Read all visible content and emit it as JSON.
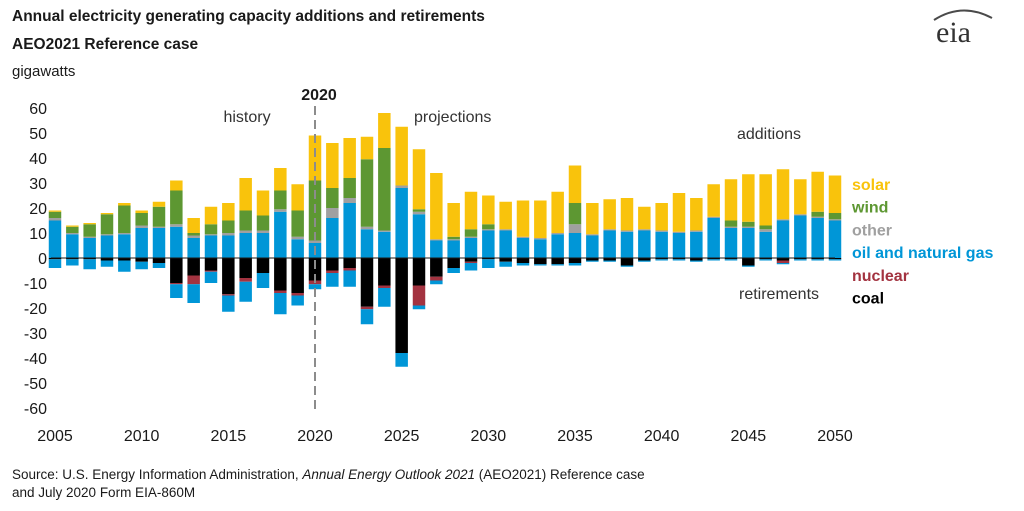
{
  "header": {
    "title": "Annual electricity generating capacity additions and retirements",
    "subtitle": "AEO2021 Reference case",
    "units": "gigawatts",
    "logo_text": "eia"
  },
  "annotations": {
    "year_marker": "2020",
    "history": "history",
    "projections": "projections",
    "additions": "additions",
    "retirements": "retirements"
  },
  "legend": [
    {
      "label": "solar",
      "color": "#f9c30c"
    },
    {
      "label": "wind",
      "color": "#5d9732"
    },
    {
      "label": "other",
      "color": "#a0a0a0"
    },
    {
      "label": "oil and natural gas",
      "color": "#0096d7"
    },
    {
      "label": "nuclear",
      "color": "#a33340"
    },
    {
      "label": "coal",
      "color": "#000000"
    }
  ],
  "source": {
    "prefix": "Source: U.S. Energy Information Administration, ",
    "italic": "Annual Energy Outlook 2021",
    "suffix": " (AEO2021) Reference case",
    "line2": "and July 2020 Form EIA-860M"
  },
  "chart_data": {
    "type": "bar",
    "stacked": true,
    "ylabel": "gigawatts",
    "ylim": [
      -60,
      60
    ],
    "yticks": [
      -60,
      -50,
      -40,
      -30,
      -20,
      -10,
      0,
      10,
      20,
      30,
      40,
      50,
      60
    ],
    "xticks": [
      2005,
      2010,
      2015,
      2020,
      2025,
      2030,
      2035,
      2040,
      2045,
      2050
    ],
    "grid": false,
    "legend_position": "right",
    "x": [
      2005,
      2006,
      2007,
      2008,
      2009,
      2010,
      2011,
      2012,
      2013,
      2014,
      2015,
      2016,
      2017,
      2018,
      2019,
      2020,
      2021,
      2022,
      2023,
      2024,
      2025,
      2026,
      2027,
      2028,
      2029,
      2030,
      2031,
      2032,
      2033,
      2034,
      2035,
      2036,
      2037,
      2038,
      2039,
      2040,
      2041,
      2042,
      2043,
      2044,
      2045,
      2046,
      2047,
      2048,
      2049,
      2050
    ],
    "additions": [
      {
        "name": "oil and natural gas",
        "color": "#0096d7",
        "values": [
          15,
          9.5,
          8,
          9,
          9.5,
          12,
          12,
          12.5,
          8,
          9,
          9,
          10,
          10,
          18.5,
          7.5,
          6,
          16,
          22,
          11.5,
          10.5,
          28,
          17.5,
          7,
          7,
          8,
          11,
          11,
          8,
          7.5,
          9.5,
          10,
          9,
          11,
          10.5,
          11,
          10.5,
          10,
          10.5,
          16,
          12,
          12,
          10.5,
          15,
          17,
          16,
          15
        ]
      },
      {
        "name": "other",
        "color": "#a0a0a0",
        "values": [
          1,
          0.5,
          0.5,
          0.5,
          0.5,
          1,
          0.5,
          1,
          1,
          0.5,
          1,
          1,
          1,
          1,
          1,
          1,
          4,
          2,
          1,
          0.5,
          1,
          1,
          0.5,
          0.5,
          0.5,
          0.5,
          0.5,
          0.5,
          0.5,
          0.5,
          3.5,
          0.5,
          0.5,
          0.5,
          0.5,
          0.5,
          0.5,
          0.5,
          0.5,
          0.5,
          0.5,
          1,
          0.5,
          0.5,
          0.5,
          0.5
        ]
      },
      {
        "name": "wind",
        "color": "#5d9732",
        "values": [
          2.5,
          2.5,
          5,
          8,
          11,
          5,
          8,
          13.5,
          1,
          4,
          5,
          8,
          6,
          7.5,
          10.5,
          24,
          8,
          8,
          27,
          33,
          0,
          1,
          0,
          1,
          3,
          2,
          0,
          0,
          0,
          0,
          8.5,
          0,
          0,
          0,
          0,
          0,
          0,
          0,
          0,
          2.5,
          2,
          1.5,
          0,
          0,
          2,
          2.5
        ]
      },
      {
        "name": "solar",
        "color": "#f9c30c",
        "values": [
          0.5,
          0.5,
          0.5,
          0.5,
          1,
          1,
          2,
          4,
          6,
          7,
          7,
          13,
          10,
          9,
          10.5,
          18,
          18,
          16,
          9,
          14,
          23.5,
          24,
          26.5,
          13.5,
          15,
          11.5,
          11,
          14.5,
          15,
          16.5,
          15,
          12.5,
          12,
          13,
          9,
          11,
          15.5,
          13,
          13,
          16.5,
          19,
          20.5,
          20,
          14,
          16,
          15
        ]
      }
    ],
    "retirements": [
      {
        "name": "coal",
        "color": "#000000",
        "values": [
          -0.5,
          -0.5,
          -0.5,
          -1,
          -1,
          -1.5,
          -2,
          -10,
          -7,
          -5,
          -14.5,
          -8,
          -6,
          -13,
          -14,
          -9,
          -5,
          -4,
          -19.5,
          -11,
          -38,
          -11,
          -7.5,
          -4,
          -1.5,
          -0.5,
          -1.5,
          -2,
          -2.5,
          -2.5,
          -2,
          -1,
          -1,
          -3,
          -1,
          -0.5,
          -0.5,
          -1,
          -0.5,
          -0.5,
          -3,
          -0.5,
          -1,
          -0.5,
          -0.5,
          -0.5
        ]
      },
      {
        "name": "nuclear",
        "color": "#a33340",
        "values": [
          0,
          0,
          0,
          0,
          0,
          0,
          0,
          -0.5,
          -3.5,
          -0.5,
          -0.5,
          -1.5,
          0,
          -1,
          -1,
          -1.5,
          -1,
          -1,
          -1,
          -1,
          0,
          -8,
          -1.5,
          0,
          -0.5,
          0,
          0,
          0,
          0,
          0,
          0,
          0,
          0,
          0,
          0,
          0,
          0,
          0,
          0,
          0,
          0,
          0,
          -1,
          0,
          0,
          0
        ]
      },
      {
        "name": "oil and natural gas",
        "color": "#0096d7",
        "values": [
          -3.5,
          -2.5,
          -4,
          -2.5,
          -4.5,
          -3,
          -2,
          -5.5,
          -7.5,
          -4.5,
          -6.5,
          -8,
          -6,
          -8.5,
          -4,
          -2,
          -5.5,
          -6.5,
          -6,
          -7.5,
          -5.5,
          -1.5,
          -1.5,
          -2,
          -3,
          -3.5,
          -2,
          -1,
          -0.5,
          -0.5,
          -1,
          -0.5,
          -0.5,
          -0.5,
          -0.5,
          -0.5,
          -0.5,
          -0.5,
          -0.5,
          -0.5,
          -0.5,
          -0.5,
          -0.5,
          -0.5,
          -0.5,
          -0.5
        ]
      }
    ]
  }
}
